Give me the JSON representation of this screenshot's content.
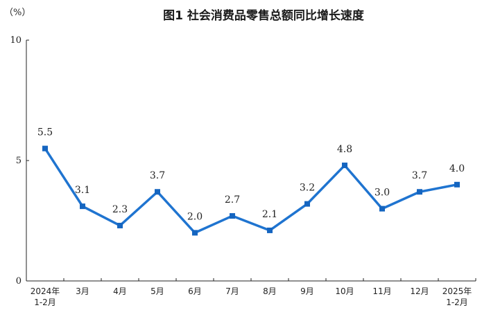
{
  "chart_data": {
    "type": "line",
    "title": "图1  社会消费品零售总额同比增长速度",
    "unit_label": "（%）",
    "ylim": [
      0,
      10
    ],
    "yticks": [
      "0",
      "5",
      "10"
    ],
    "yticks_values": [
      0,
      5,
      10
    ],
    "grid": false,
    "categories": [
      [
        "2024年",
        "1-2月"
      ],
      [
        "3月"
      ],
      [
        "4月"
      ],
      [
        "5月"
      ],
      [
        "6月"
      ],
      [
        "7月"
      ],
      [
        "8月"
      ],
      [
        "9月"
      ],
      [
        "10月"
      ],
      [
        "11月"
      ],
      [
        "12月"
      ],
      [
        "2025年",
        "1-2月"
      ]
    ],
    "series": [
      {
        "values": [
          5.5,
          3.1,
          2.3,
          3.7,
          2.0,
          2.7,
          2.1,
          3.2,
          4.8,
          3.0,
          3.7,
          4.0
        ],
        "labels": [
          "5.5",
          "3.1",
          "2.3",
          "3.7",
          "2.0",
          "2.7",
          "2.1",
          "3.2",
          "4.8",
          "3.0",
          "3.7",
          "4.0"
        ]
      }
    ],
    "colors": {
      "line": "#1f74d0",
      "marker": "#1565c0"
    }
  }
}
